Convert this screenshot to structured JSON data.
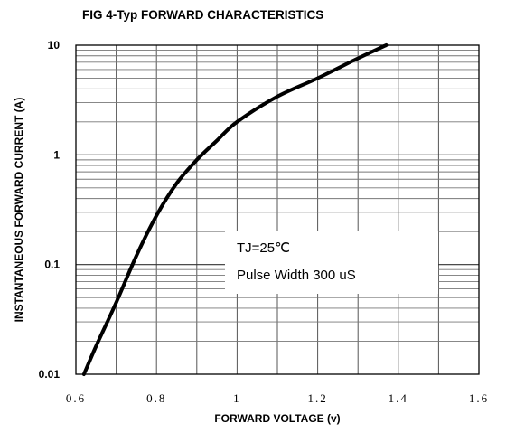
{
  "chart_data": {
    "type": "line",
    "title": "FIG 4-Typ FORWARD CHARACTERISTICS",
    "xlabel": "FORWARD VOLTAGE (v)",
    "ylabel": "INSTANTANEOUS FORWARD CURRENT (A)",
    "xlim": [
      0.6,
      1.6
    ],
    "ylim": [
      0.01,
      10
    ],
    "yscale": "log",
    "grid": true,
    "x_ticks": [
      "0.6",
      "0.8",
      "1",
      "1.2",
      "1.4",
      "1.6"
    ],
    "y_ticks": [
      "0.01",
      "0.1",
      "1",
      "10"
    ],
    "annotations": [
      "TJ=25℃",
      "Pulse Width 300 uS"
    ],
    "series": [
      {
        "x": [
          0.62,
          0.65,
          0.7,
          0.75,
          0.8,
          0.85,
          0.9,
          0.95,
          1.0,
          1.1,
          1.2,
          1.3,
          1.37
        ],
        "y": [
          0.01,
          0.018,
          0.045,
          0.12,
          0.28,
          0.55,
          0.9,
          1.35,
          2.0,
          3.4,
          5.0,
          7.6,
          10.0
        ]
      }
    ],
    "line_color": "#000000"
  }
}
